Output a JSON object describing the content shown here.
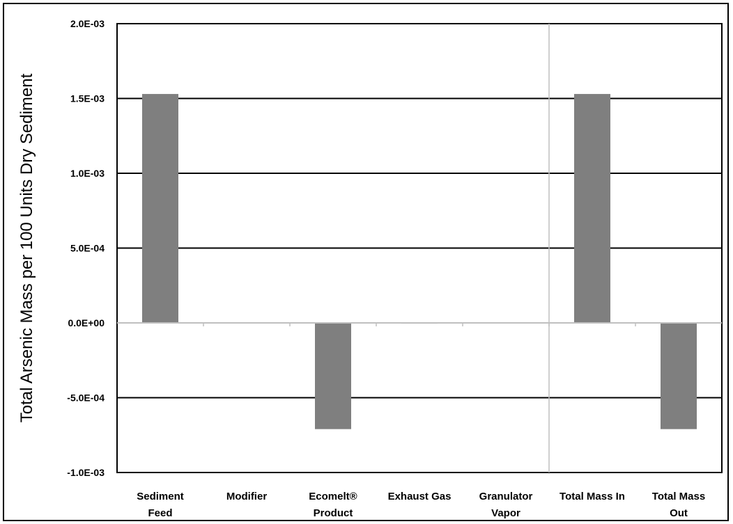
{
  "chart_data": {
    "type": "bar",
    "title": "",
    "xlabel": "",
    "ylabel": "Total Arsenic Mass per 100 Units Dry Sediment",
    "categories": [
      [
        "Sediment",
        "Feed"
      ],
      [
        "Modifier"
      ],
      [
        "Ecomelt®",
        "Product"
      ],
      [
        "Exhaust Gas"
      ],
      [
        "Granulator",
        "Vapor"
      ],
      [
        "Total Mass In"
      ],
      [
        "Total Mass",
        "Out"
      ]
    ],
    "values": [
      0.00153,
      0,
      -0.00071,
      -5e-06,
      0,
      0.00153,
      -0.00071
    ],
    "ylim": [
      -0.001,
      0.002
    ],
    "yticks": [
      -0.001,
      -0.0005,
      0,
      0.0005,
      0.001,
      0.0015,
      0.002
    ],
    "ytick_labels": [
      "-1.0E-03",
      "-5.0E-04",
      "0.0E+00",
      "5.0E-04",
      "1.0E-03",
      "1.5E-03",
      "2.0E-03"
    ],
    "grid": true,
    "separator_after_category": 4,
    "colors": {
      "bar": "#7f7f7f",
      "grid": "#000000",
      "zero_axis": "#bfbfbf",
      "separator": "#bfbfbf"
    }
  }
}
